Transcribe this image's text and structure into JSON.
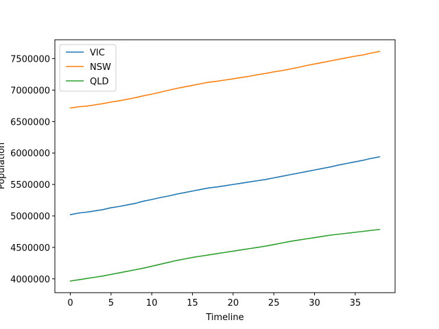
{
  "chart_data": {
    "type": "line",
    "xlabel": "Timeline",
    "ylabel": "Population",
    "xlim": [
      -1.9,
      39.9
    ],
    "ylim": [
      3780000,
      7800000
    ],
    "xticks": [
      0,
      5,
      10,
      15,
      20,
      25,
      30,
      35
    ],
    "yticks": [
      4000000,
      4500000,
      5000000,
      5500000,
      6000000,
      6500000,
      7000000,
      7500000
    ],
    "legend_position": "upper-left",
    "grid": false,
    "x": [
      0,
      1,
      2,
      3,
      4,
      5,
      6,
      7,
      8,
      9,
      10,
      11,
      12,
      13,
      14,
      15,
      16,
      17,
      18,
      19,
      20,
      21,
      22,
      23,
      24,
      25,
      26,
      27,
      28,
      29,
      30,
      31,
      32,
      33,
      34,
      35,
      36,
      37,
      38
    ],
    "series": [
      {
        "name": "VIC",
        "color": "#1f77b4",
        "values": [
          5020000,
          5045000,
          5060000,
          5080000,
          5100000,
          5130000,
          5150000,
          5175000,
          5200000,
          5235000,
          5260000,
          5290000,
          5315000,
          5345000,
          5370000,
          5395000,
          5420000,
          5445000,
          5460000,
          5480000,
          5500000,
          5520000,
          5540000,
          5560000,
          5580000,
          5605000,
          5630000,
          5655000,
          5680000,
          5705000,
          5730000,
          5755000,
          5780000,
          5810000,
          5835000,
          5860000,
          5885000,
          5915000,
          5940000
        ]
      },
      {
        "name": "NSW",
        "color": "#ff7f0e",
        "values": [
          6715000,
          6735000,
          6745000,
          6765000,
          6785000,
          6810000,
          6830000,
          6855000,
          6880000,
          6910000,
          6935000,
          6965000,
          6995000,
          7025000,
          7050000,
          7075000,
          7100000,
          7125000,
          7140000,
          7160000,
          7180000,
          7200000,
          7220000,
          7245000,
          7265000,
          7290000,
          7310000,
          7335000,
          7360000,
          7390000,
          7415000,
          7440000,
          7465000,
          7490000,
          7515000,
          7540000,
          7560000,
          7590000,
          7615000
        ]
      },
      {
        "name": "QLD",
        "color": "#2ca02c",
        "values": [
          3965000,
          3985000,
          4005000,
          4025000,
          4045000,
          4070000,
          4095000,
          4120000,
          4145000,
          4170000,
          4200000,
          4230000,
          4260000,
          4290000,
          4315000,
          4340000,
          4360000,
          4380000,
          4400000,
          4420000,
          4440000,
          4460000,
          4480000,
          4500000,
          4520000,
          4545000,
          4570000,
          4595000,
          4615000,
          4635000,
          4655000,
          4675000,
          4695000,
          4710000,
          4725000,
          4740000,
          4755000,
          4770000,
          4785000
        ]
      }
    ]
  }
}
